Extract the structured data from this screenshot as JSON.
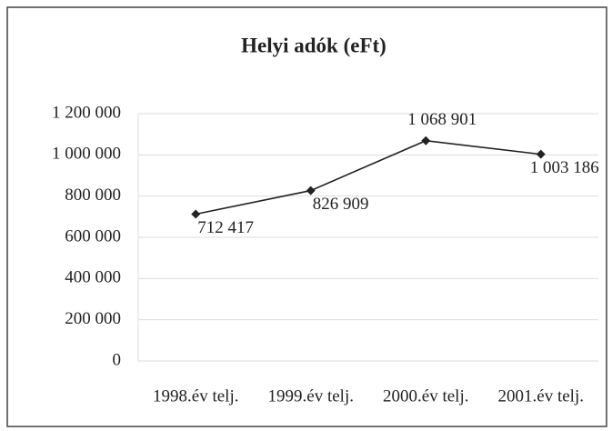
{
  "chart_data": {
    "type": "line",
    "title": "Helyi adók (eFt)",
    "categories": [
      "1998.év telj.",
      "1999.év telj.",
      "2000.év telj.",
      "2001.év telj."
    ],
    "series": [
      {
        "name": "Helyi adók",
        "color": "#222222",
        "values": [
          712417,
          826909,
          1068901,
          1003186
        ],
        "value_labels": [
          "712 417",
          "826 909",
          "1 068 901",
          "1 003 186"
        ]
      }
    ],
    "ylim": [
      0,
      1200000
    ],
    "yticks": [
      0,
      {
        "value": 200000,
        "label": "200 000"
      },
      {
        "value": 400000,
        "label": "400 000"
      },
      {
        "value": 600000,
        "label": "600 000"
      },
      {
        "value": 800000,
        "label": "800 000"
      },
      {
        "value": 1000000,
        "label": "1 000 000"
      },
      {
        "value": 1200000,
        "label": "1 200 000"
      }
    ],
    "grid": true
  }
}
